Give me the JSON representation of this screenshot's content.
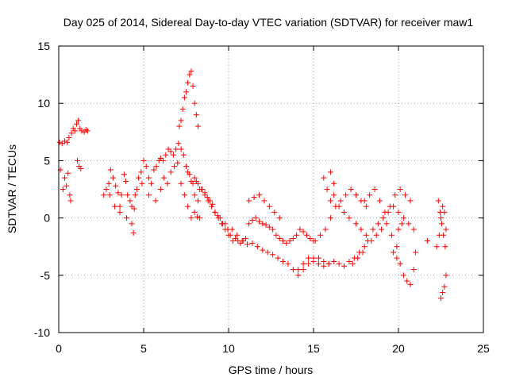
{
  "chart_data": {
    "type": "scatter",
    "title": "Day 025 of 2014, Sidereal Day-to-day VTEC variation (SDTVAR) for receiver maw1",
    "xlabel": "GPS time / hours",
    "ylabel": "SDTVAR / TECUs",
    "xlim": [
      0,
      25
    ],
    "ylim": [
      -10,
      15
    ],
    "xticks": [
      0,
      5,
      10,
      15,
      20,
      25
    ],
    "yticks": [
      -10,
      -5,
      0,
      5,
      10,
      15
    ],
    "grid": true,
    "marker": "+",
    "series_color": "#ff0000",
    "series": [
      {
        "name": "SDTVAR",
        "x": [
          0.05,
          0.2,
          0.35,
          0.5,
          0.6,
          0.75,
          0.85,
          0.95,
          1.05,
          1.15,
          1.25,
          1.35,
          1.5,
          1.6,
          1.7,
          0.1,
          0.25,
          0.35,
          0.45,
          0.55,
          0.65,
          0.7,
          1.1,
          1.2,
          1.3,
          2.65,
          2.8,
          2.95,
          3.05,
          3.2,
          3.35,
          3.5,
          3.6,
          3.7,
          3.85,
          3.95,
          4.05,
          4.2,
          4.3,
          4.45,
          4.6,
          4.7,
          4.85,
          5.0,
          5.15,
          5.3,
          5.45,
          5.6,
          5.75,
          5.9,
          6.0,
          6.15,
          6.3,
          6.45,
          6.6,
          6.75,
          6.9,
          7.05,
          7.2,
          7.35,
          7.5,
          7.6,
          7.7,
          7.8,
          7.9,
          8.0,
          8.1,
          8.2,
          8.3,
          8.45,
          8.6,
          8.75,
          8.9,
          9.05,
          9.2,
          9.35,
          9.5,
          9.65,
          9.8,
          9.95,
          10.1,
          10.25,
          10.4,
          10.55,
          10.7,
          10.85,
          11.0,
          3.0,
          3.3,
          3.6,
          4.0,
          4.3,
          4.5,
          4.9,
          5.3,
          5.7,
          6.0,
          6.2,
          6.4,
          6.6,
          6.8,
          7.0,
          7.2,
          7.4,
          7.6,
          7.8,
          8.0,
          8.2,
          8.4,
          8.6,
          8.8,
          9.0,
          9.2,
          9.4,
          9.6,
          9.8,
          10.0,
          7.1,
          7.2,
          7.3,
          7.4,
          7.5,
          7.6,
          7.7,
          7.8,
          7.9,
          8.0,
          8.1,
          8.2,
          4.4,
          8.0,
          8.15,
          8.3,
          11.2,
          11.4,
          11.6,
          11.8,
          12.0,
          12.2,
          12.4,
          12.6,
          12.8,
          13.0,
          13.2,
          13.4,
          13.6,
          13.8,
          14.0,
          14.2,
          14.4,
          14.6,
          14.8,
          15.0,
          10.2,
          10.5,
          10.8,
          11.1,
          11.4,
          11.7,
          12.0,
          12.3,
          12.6,
          12.9,
          13.2,
          13.5,
          13.8,
          14.1,
          14.4,
          14.7,
          15.0,
          15.3,
          15.6,
          15.9,
          11.2,
          11.5,
          11.8,
          12.1,
          12.4,
          12.7,
          13.0,
          14.1,
          14.4,
          14.7,
          15.0,
          15.3,
          15.6,
          15.9,
          16.2,
          16.5,
          16.8,
          17.1,
          17.4,
          17.7,
          18.0,
          15.1,
          15.4,
          15.7,
          16.0,
          16.3,
          16.6,
          16.9,
          17.2,
          17.5,
          17.8,
          18.1,
          15.6,
          15.8,
          16.0,
          16.2,
          16.5,
          16.8,
          17.1,
          16.0,
          16.2,
          17.3,
          17.6,
          17.9,
          18.2,
          18.5,
          18.8,
          19.1,
          19.4,
          19.7,
          20.0,
          20.3,
          20.6,
          20.9,
          18.0,
          18.3,
          18.6,
          18.9,
          19.2,
          19.5,
          19.8,
          20.1,
          20.4,
          20.7,
          17.5,
          17.8,
          18.1,
          18.4,
          18.7,
          19.0,
          19.3,
          19.6,
          19.9,
          19.7,
          19.9,
          20.1,
          20.3,
          20.5,
          20.7,
          20.9,
          21.0,
          20.0,
          20.2,
          21.7,
          22.25,
          22.4,
          22.5,
          22.6,
          22.7,
          22.8,
          22.35,
          22.45,
          22.55,
          22.65,
          22.75,
          22.5,
          22.6,
          22.7,
          22.8
        ],
        "y": [
          6.6,
          6.5,
          6.7,
          6.6,
          7.0,
          7.4,
          7.8,
          7.6,
          8.2,
          8.5,
          7.8,
          7.6,
          7.5,
          7.7,
          7.6,
          4.2,
          2.5,
          3.5,
          2.8,
          3.9,
          2.0,
          1.5,
          5.0,
          4.5,
          4.3,
          2.0,
          2.5,
          3.0,
          4.2,
          3.5,
          2.8,
          2.2,
          1.0,
          2.0,
          3.8,
          3.2,
          2.0,
          1.5,
          1.0,
          0.8,
          2.5,
          3.5,
          4.0,
          5.0,
          4.5,
          3.5,
          3.0,
          4.2,
          4.5,
          5.0,
          5.2,
          5.0,
          5.5,
          6.0,
          5.8,
          5.5,
          6.0,
          6.5,
          6.0,
          5.5,
          4.5,
          4.0,
          3.8,
          3.2,
          3.0,
          3.5,
          3.2,
          3.0,
          2.5,
          2.5,
          2.2,
          1.8,
          1.5,
          1.2,
          0.5,
          0.2,
          0.0,
          -0.5,
          -0.5,
          -1.0,
          -1.5,
          -2.0,
          -1.8,
          -2.0,
          -2.2,
          -2.0,
          -1.8,
          2.0,
          1.0,
          0.5,
          0.0,
          -0.5,
          2.0,
          3.0,
          2.0,
          1.5,
          2.5,
          3.5,
          3.0,
          4.0,
          4.5,
          4.8,
          3.0,
          2.0,
          1.0,
          0.0,
          2.0,
          1.5,
          2.5,
          2.0,
          1.5,
          1.0,
          0.5,
          0.0,
          -0.5,
          -1.0,
          -1.5,
          8.0,
          8.5,
          9.5,
          10.5,
          11.0,
          11.8,
          12.5,
          12.8,
          11.5,
          10.0,
          9.0,
          8.0,
          -1.3,
          0.5,
          0.1,
          0.0,
          -0.5,
          -0.2,
          0.0,
          -0.3,
          -0.5,
          -0.6,
          -0.8,
          -1.0,
          -1.5,
          -1.8,
          -2.0,
          -2.2,
          -2.0,
          -1.8,
          -1.5,
          -1.0,
          -1.2,
          -1.5,
          -1.8,
          -2.0,
          -1.0,
          -1.5,
          -2.0,
          -2.3,
          -2.2,
          -2.5,
          -2.8,
          -3.0,
          -3.2,
          -3.5,
          -3.8,
          -4.0,
          -4.5,
          -5.0,
          -4.5,
          -4.0,
          -3.5,
          -3.5,
          -3.8,
          -4.0,
          1.5,
          1.8,
          2.0,
          1.5,
          1.0,
          0.5,
          0.0,
          -4.5,
          -4.0,
          -3.5,
          -3.8,
          -4.0,
          -4.2,
          -4.0,
          -3.8,
          -4.0,
          -4.2,
          -3.8,
          -3.5,
          -3.0,
          -2.5,
          -2.0,
          -1.5,
          -1.0,
          0.0,
          1.0,
          1.5,
          2.0,
          2.5,
          2.0,
          1.5,
          1.0,
          3.5,
          2.5,
          1.5,
          2.0,
          1.0,
          0.5,
          0.0,
          4.0,
          3.0,
          -4.0,
          -3.5,
          -3.0,
          -2.0,
          -1.0,
          -0.5,
          0.0,
          0.5,
          1.0,
          0.5,
          0.0,
          -0.5,
          -1.0,
          1.5,
          2.0,
          2.5,
          1.5,
          0.5,
          1.0,
          2.0,
          2.5,
          2.0,
          1.5,
          -0.5,
          -1.0,
          -1.5,
          -2.0,
          -1.5,
          -1.0,
          -0.5,
          -1.5,
          -2.5,
          -3.0,
          -3.5,
          -4.0,
          -5.0,
          -5.5,
          -5.8,
          -4.5,
          -3.0,
          -1.0,
          -0.5,
          -2.0,
          -2.5,
          -1.5,
          0.0,
          1.0,
          0.5,
          -1.0,
          1.5,
          0.5,
          -0.5,
          -1.5,
          -2.5,
          -7.0,
          -6.5,
          -6.0,
          -5.0
        ]
      }
    ]
  }
}
